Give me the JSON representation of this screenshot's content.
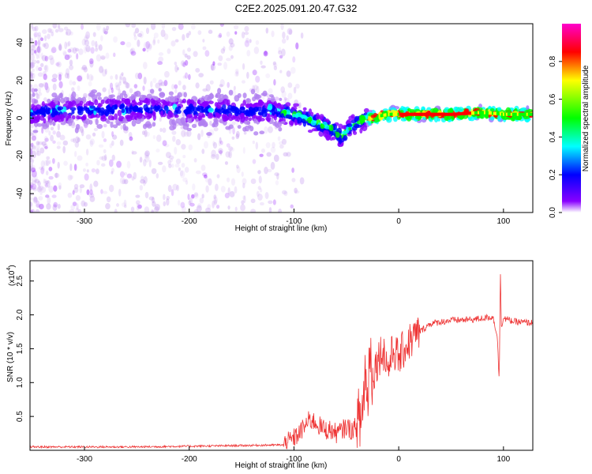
{
  "title": "C2E2.2025.091.20.47.G32",
  "chart_data": [
    {
      "type": "heatmap",
      "title": "C2E2.2025.091.20.47.G32",
      "xlabel": "Height of straight line (km)",
      "ylabel": "Frequency (Hz)",
      "xlim": [
        -352,
        128
      ],
      "ylim": [
        -50,
        50
      ],
      "xticks": [
        -300,
        -200,
        -100,
        0,
        100
      ],
      "yticks": [
        -40,
        -20,
        0,
        20,
        40
      ],
      "ridge": {
        "x": [
          -350,
          -300,
          -250,
          -200,
          -150,
          -120,
          -100,
          -90,
          -80,
          -70,
          -60,
          -55,
          -50,
          -45,
          -40,
          -30,
          -20,
          -10,
          0,
          20,
          50,
          80,
          100,
          128
        ],
        "freq": [
          3,
          4,
          5,
          4,
          4,
          4,
          2,
          0,
          -2,
          -4,
          -7,
          -10,
          -7,
          -4,
          -2,
          0,
          1,
          2,
          2,
          2,
          2,
          3,
          2,
          2
        ]
      },
      "colorbar": {
        "label": "Normalized spectral amplitude",
        "range": [
          0,
          1
        ],
        "ticks": [
          "0.0",
          "0.2",
          "0.4",
          "0.6",
          "0.8"
        ],
        "colors": [
          "#ffffff",
          "#8800ff",
          "#0000ff",
          "#00ffff",
          "#00ff00",
          "#ffff00",
          "#ff0000",
          "#ff00cc"
        ]
      }
    },
    {
      "type": "line",
      "xlabel": "Height of straight line (km)",
      "ylabel": "SNR (10 * v/v)",
      "yscale_label": "(x10",
      "yscale_exp": "4",
      "xlim": [
        -352,
        128
      ],
      "ylim": [
        0,
        2.8
      ],
      "xticks": [
        -300,
        -200,
        -100,
        0,
        100
      ],
      "yticks": [
        0.5,
        1.0,
        1.5,
        2.0,
        2.5
      ],
      "ytick_labels": [
        "0.5",
        "1.0",
        "1.5",
        "2.0",
        "2.5"
      ],
      "color": "#ee3333",
      "series": [
        {
          "name": "SNR",
          "x": [
            -352,
            -300,
            -250,
            -200,
            -150,
            -110,
            -100,
            -95,
            -90,
            -85,
            -80,
            -75,
            -70,
            -65,
            -60,
            -55,
            -50,
            -45,
            -40,
            -35,
            -32,
            -30,
            -28,
            -25,
            -20,
            -15,
            -10,
            -5,
            0,
            5,
            10,
            20,
            30,
            50,
            70,
            90,
            94,
            96,
            97,
            98,
            100,
            110,
            128
          ],
          "y": [
            0.05,
            0.05,
            0.05,
            0.06,
            0.07,
            0.08,
            0.18,
            0.25,
            0.35,
            0.45,
            0.42,
            0.35,
            0.3,
            0.3,
            0.25,
            0.28,
            0.35,
            0.3,
            0.35,
            0.5,
            1.2,
            0.6,
            1.5,
            1.1,
            1.35,
            1.5,
            1.2,
            1.5,
            1.35,
            1.5,
            1.6,
            1.75,
            1.87,
            1.92,
            1.93,
            1.97,
            1.7,
            1.0,
            2.7,
            1.85,
            1.95,
            1.9,
            1.88
          ]
        }
      ]
    }
  ]
}
